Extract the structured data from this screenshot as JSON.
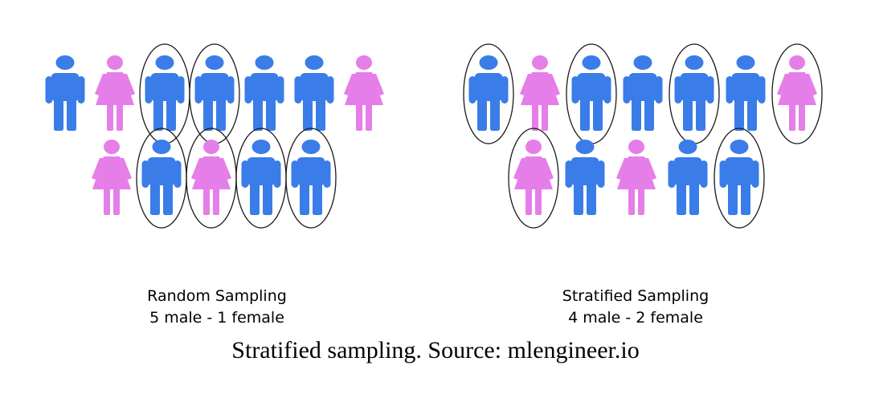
{
  "colors": {
    "male": "#3a7de8",
    "female": "#e57ee8",
    "selection_ring": "#1a1a1a"
  },
  "icons": {
    "male": "male-person-icon",
    "female": "female-person-icon",
    "selection": "selection-ellipse"
  },
  "panels": [
    {
      "id": "random",
      "title": "Random Sampling",
      "summary": "5 male - 1 female",
      "rows": [
        [
          {
            "gender": "male",
            "selected": false
          },
          {
            "gender": "female",
            "selected": false
          },
          {
            "gender": "male",
            "selected": true
          },
          {
            "gender": "male",
            "selected": true
          },
          {
            "gender": "male",
            "selected": false
          },
          {
            "gender": "male",
            "selected": false
          },
          {
            "gender": "female",
            "selected": false
          }
        ],
        [
          {
            "gender": "female",
            "selected": false
          },
          {
            "gender": "male",
            "selected": true
          },
          {
            "gender": "female",
            "selected": true
          },
          {
            "gender": "male",
            "selected": true
          },
          {
            "gender": "male",
            "selected": true
          }
        ]
      ]
    },
    {
      "id": "stratified",
      "title": "Stratified Sampling",
      "summary": "4 male - 2 female",
      "rows": [
        [
          {
            "gender": "male",
            "selected": true
          },
          {
            "gender": "female",
            "selected": false
          },
          {
            "gender": "male",
            "selected": true
          },
          {
            "gender": "male",
            "selected": false
          },
          {
            "gender": "male",
            "selected": true
          },
          {
            "gender": "male",
            "selected": false
          },
          {
            "gender": "female",
            "selected": true
          }
        ],
        [
          {
            "gender": "female",
            "selected": true
          },
          {
            "gender": "male",
            "selected": false
          },
          {
            "gender": "female",
            "selected": false
          },
          {
            "gender": "male",
            "selected": false
          },
          {
            "gender": "male",
            "selected": true
          }
        ]
      ]
    }
  ],
  "figure_caption": "Stratified sampling. Source: mlengineer.io"
}
